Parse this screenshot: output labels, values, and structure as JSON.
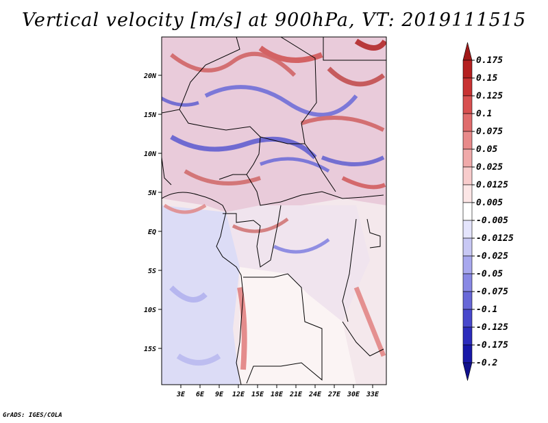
{
  "title": "Vertical velocity [m/s] at 900hPa, VT: 2019111515",
  "credit": "GrADS: IGES/COLA",
  "map": {
    "lat_labels": [
      "20N",
      "15N",
      "10N",
      "5N",
      "EQ",
      "5S",
      "10S",
      "15S"
    ],
    "lon_labels": [
      "3E",
      "6E",
      "9E",
      "12E",
      "15E",
      "18E",
      "21E",
      "24E",
      "27E",
      "30E",
      "33E"
    ]
  },
  "colorbar": {
    "labels": [
      "0.175",
      "0.15",
      "0.125",
      "0.1",
      "0.075",
      "0.05",
      "0.025",
      "0.0125",
      "0.005",
      "-0.005",
      "-0.0125",
      "-0.025",
      "-0.05",
      "-0.075",
      "-0.1",
      "-0.125",
      "-0.175",
      "-0.2"
    ],
    "colors": [
      "#a01818",
      "#b42020",
      "#c83232",
      "#d85050",
      "#e06c6c",
      "#e88a8a",
      "#f0aaaa",
      "#f8cccc",
      "#fce6e6",
      "#ffffff",
      "#e4e4fc",
      "#c8c8f4",
      "#a8a8ee",
      "#8888e4",
      "#6868d8",
      "#4848cc",
      "#2c2cbc",
      "#1818a8",
      "#10108c"
    ]
  }
}
